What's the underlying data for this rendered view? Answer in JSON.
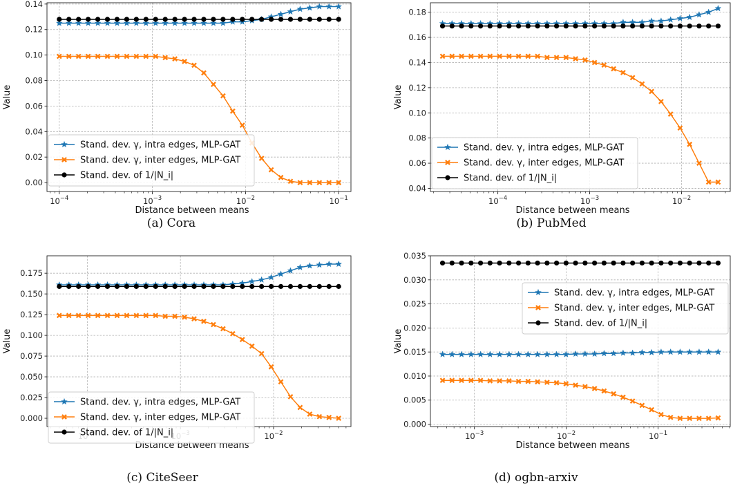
{
  "colors": {
    "intra": "#1f77b4",
    "inter": "#ff7f0e",
    "inv": "#000000"
  },
  "chart_data": [
    {
      "type": "line",
      "caption": "(a) Cora",
      "xlabel": "Distance between means",
      "ylabel": "Value",
      "xscale": "log",
      "xlim": [
        7.5e-05,
        0.000125
      ],
      "ylim": [
        -0.007,
        0.141
      ],
      "xticks": [
        {
          "v": 0.0001,
          "base": "10",
          "exp": "−4"
        },
        {
          "v": 0.001,
          "base": "10",
          "exp": "−3"
        },
        {
          "v": 0.01,
          "base": "10",
          "exp": "−2"
        },
        {
          "v": 0.1,
          "base": "10",
          "exp": "−1"
        }
      ],
      "yticks": [
        {
          "v": 0.0,
          "label": "0.00"
        },
        {
          "v": 0.02,
          "label": "0.02"
        },
        {
          "v": 0.04,
          "label": "0.04"
        },
        {
          "v": 0.06,
          "label": "0.06"
        },
        {
          "v": 0.08,
          "label": "0.08"
        },
        {
          "v": 0.1,
          "label": "0.10"
        },
        {
          "v": 0.12,
          "label": "0.12"
        },
        {
          "v": 0.14,
          "label": "0.14"
        }
      ],
      "legend": "lower-left",
      "x_range": [
        0.0001,
        0.1
      ],
      "n_points": 30,
      "grid": true,
      "series": [
        {
          "name": "Stand. dev. γ, intra edges, MLP-GAT",
          "color": "intra",
          "marker": "star",
          "values": [
            0.125,
            0.125,
            0.125,
            0.125,
            0.125,
            0.125,
            0.125,
            0.125,
            0.125,
            0.125,
            0.125,
            0.125,
            0.125,
            0.125,
            0.125,
            0.125,
            0.125,
            0.125,
            0.126,
            0.126,
            0.127,
            0.128,
            0.13,
            0.132,
            0.134,
            0.136,
            0.137,
            0.138,
            0.138,
            0.138
          ]
        },
        {
          "name": "Stand. dev. γ, inter edges, MLP-GAT",
          "color": "inter",
          "marker": "x",
          "values": [
            0.099,
            0.099,
            0.099,
            0.099,
            0.099,
            0.099,
            0.099,
            0.099,
            0.099,
            0.099,
            0.099,
            0.098,
            0.097,
            0.095,
            0.092,
            0.086,
            0.077,
            0.068,
            0.056,
            0.045,
            0.031,
            0.019,
            0.01,
            0.004,
            0.001,
            0.0,
            0.0,
            0.0,
            0.0,
            0.0
          ]
        },
        {
          "name": "Stand. dev. of 1/|N_i|",
          "color": "inv",
          "marker": "circle",
          "values": [
            0.128,
            0.128,
            0.128,
            0.128,
            0.128,
            0.128,
            0.128,
            0.128,
            0.128,
            0.128,
            0.128,
            0.128,
            0.128,
            0.128,
            0.128,
            0.128,
            0.128,
            0.128,
            0.128,
            0.128,
            0.128,
            0.128,
            0.128,
            0.128,
            0.128,
            0.128,
            0.128,
            0.128,
            0.128,
            0.128
          ]
        }
      ]
    },
    {
      "type": "line",
      "caption": "(b) PubMed",
      "xlabel": "Distance between means",
      "ylabel": "Value",
      "xscale": "log",
      "ylim": [
        0.0375,
        0.1875
      ],
      "xticks": [
        {
          "v": 0.0001,
          "base": "10",
          "exp": "−4"
        },
        {
          "v": 0.001,
          "base": "10",
          "exp": "−3"
        },
        {
          "v": 0.01,
          "base": "10",
          "exp": "−2"
        }
      ],
      "yticks": [
        {
          "v": 0.04,
          "label": "0.04"
        },
        {
          "v": 0.06,
          "label": "0.06"
        },
        {
          "v": 0.08,
          "label": "0.08"
        },
        {
          "v": 0.1,
          "label": "0.10"
        },
        {
          "v": 0.12,
          "label": "0.12"
        },
        {
          "v": 0.14,
          "label": "0.14"
        },
        {
          "v": 0.16,
          "label": "0.16"
        },
        {
          "v": 0.18,
          "label": "0.18"
        }
      ],
      "legend": "lower-left",
      "x_range": [
        2.5e-05,
        0.025
      ],
      "n_points": 30,
      "grid": true,
      "series": [
        {
          "name": "Stand. dev. γ, intra edges, MLP-GAT",
          "color": "intra",
          "marker": "star",
          "values": [
            0.171,
            0.171,
            0.171,
            0.171,
            0.171,
            0.171,
            0.171,
            0.171,
            0.171,
            0.171,
            0.171,
            0.171,
            0.171,
            0.171,
            0.171,
            0.171,
            0.171,
            0.171,
            0.171,
            0.172,
            0.172,
            0.172,
            0.173,
            0.173,
            0.174,
            0.175,
            0.176,
            0.178,
            0.18,
            0.183
          ]
        },
        {
          "name": "Stand. dev. γ, inter edges, MLP-GAT",
          "color": "inter",
          "marker": "x",
          "values": [
            0.145,
            0.145,
            0.145,
            0.145,
            0.145,
            0.145,
            0.145,
            0.145,
            0.145,
            0.145,
            0.145,
            0.144,
            0.144,
            0.144,
            0.143,
            0.142,
            0.14,
            0.138,
            0.135,
            0.132,
            0.128,
            0.123,
            0.117,
            0.109,
            0.099,
            0.088,
            0.075,
            0.06,
            0.045,
            0.045
          ]
        },
        {
          "name": "Stand. dev. of 1/|N_i|",
          "color": "inv",
          "marker": "circle",
          "values": [
            0.169,
            0.169,
            0.169,
            0.169,
            0.169,
            0.169,
            0.169,
            0.169,
            0.169,
            0.169,
            0.169,
            0.169,
            0.169,
            0.169,
            0.169,
            0.169,
            0.169,
            0.169,
            0.169,
            0.169,
            0.169,
            0.169,
            0.169,
            0.169,
            0.169,
            0.169,
            0.169,
            0.169,
            0.169,
            0.169
          ]
        }
      ]
    },
    {
      "type": "line",
      "caption": "(c) CiteSeer",
      "xlabel": "Distance between means",
      "ylabel": "Value",
      "xscale": "log",
      "ylim": [
        -0.01,
        0.196
      ],
      "xticks": [
        {
          "v": 0.0001,
          "base": "10",
          "exp": "−4"
        },
        {
          "v": 0.001,
          "base": "10",
          "exp": "−3"
        },
        {
          "v": 0.01,
          "base": "10",
          "exp": "−2"
        }
      ],
      "yticks": [
        {
          "v": 0.0,
          "label": "0.000"
        },
        {
          "v": 0.025,
          "label": "0.025"
        },
        {
          "v": 0.05,
          "label": "0.050"
        },
        {
          "v": 0.075,
          "label": "0.075"
        },
        {
          "v": 0.1,
          "label": "0.100"
        },
        {
          "v": 0.125,
          "label": "0.125"
        },
        {
          "v": 0.15,
          "label": "0.150"
        },
        {
          "v": 0.175,
          "label": "0.175"
        }
      ],
      "legend": "lower-left",
      "x_range": [
        5e-05,
        0.05
      ],
      "n_points": 30,
      "grid": true,
      "series": [
        {
          "name": "Stand. dev. γ, intra edges, MLP-GAT",
          "color": "intra",
          "marker": "star",
          "values": [
            0.161,
            0.161,
            0.161,
            0.161,
            0.161,
            0.161,
            0.161,
            0.161,
            0.161,
            0.161,
            0.161,
            0.161,
            0.161,
            0.161,
            0.161,
            0.161,
            0.161,
            0.161,
            0.162,
            0.163,
            0.165,
            0.167,
            0.17,
            0.174,
            0.178,
            0.182,
            0.184,
            0.185,
            0.186,
            0.186
          ]
        },
        {
          "name": "Stand. dev. γ, inter edges, MLP-GAT",
          "color": "inter",
          "marker": "x",
          "values": [
            0.124,
            0.124,
            0.124,
            0.124,
            0.124,
            0.124,
            0.124,
            0.124,
            0.124,
            0.124,
            0.124,
            0.123,
            0.123,
            0.122,
            0.12,
            0.117,
            0.113,
            0.108,
            0.102,
            0.095,
            0.087,
            0.078,
            0.062,
            0.044,
            0.026,
            0.013,
            0.005,
            0.002,
            0.001,
            0.0
          ]
        },
        {
          "name": "Stand. dev. of 1/|N_i|",
          "color": "inv",
          "marker": "circle",
          "values": [
            0.159,
            0.159,
            0.159,
            0.159,
            0.159,
            0.159,
            0.159,
            0.159,
            0.159,
            0.159,
            0.159,
            0.159,
            0.159,
            0.159,
            0.159,
            0.159,
            0.159,
            0.159,
            0.159,
            0.159,
            0.159,
            0.159,
            0.159,
            0.159,
            0.159,
            0.159,
            0.159,
            0.159,
            0.159,
            0.159
          ]
        }
      ]
    },
    {
      "type": "line",
      "caption": "(d) ogbn-arxiv",
      "xlabel": "Distance between means",
      "ylabel": "Value",
      "xscale": "log",
      "ylim": [
        -0.0005,
        0.035
      ],
      "xticks": [
        {
          "v": 0.001,
          "base": "10",
          "exp": "−3"
        },
        {
          "v": 0.01,
          "base": "10",
          "exp": "−2"
        },
        {
          "v": 0.1,
          "base": "10",
          "exp": "−1"
        }
      ],
      "yticks": [
        {
          "v": 0.0,
          "label": "0.000"
        },
        {
          "v": 0.005,
          "label": "0.005"
        },
        {
          "v": 0.01,
          "label": "0.010"
        },
        {
          "v": 0.015,
          "label": "0.015"
        },
        {
          "v": 0.02,
          "label": "0.020"
        },
        {
          "v": 0.025,
          "label": "0.025"
        },
        {
          "v": 0.03,
          "label": "0.030"
        },
        {
          "v": 0.035,
          "label": "0.035"
        }
      ],
      "legend": "upper-right",
      "x_range": [
        0.00045,
        0.45
      ],
      "n_points": 30,
      "grid": true,
      "series": [
        {
          "name": "Stand. dev. γ, intra edges, MLP-GAT",
          "color": "intra",
          "marker": "star",
          "values": [
            0.0145,
            0.0145,
            0.0145,
            0.0145,
            0.0145,
            0.0145,
            0.0145,
            0.0145,
            0.0145,
            0.0145,
            0.0145,
            0.0145,
            0.0145,
            0.0145,
            0.0146,
            0.0146,
            0.0146,
            0.0147,
            0.0147,
            0.0148,
            0.0148,
            0.0149,
            0.0149,
            0.015,
            0.015,
            0.015,
            0.015,
            0.015,
            0.015,
            0.015
          ]
        },
        {
          "name": "Stand. dev. γ, inter edges, MLP-GAT",
          "color": "inter",
          "marker": "x",
          "values": [
            0.0091,
            0.0091,
            0.0091,
            0.0091,
            0.0091,
            0.009,
            0.009,
            0.009,
            0.0089,
            0.0089,
            0.0088,
            0.0087,
            0.0086,
            0.0084,
            0.0081,
            0.0078,
            0.0074,
            0.0069,
            0.0063,
            0.0056,
            0.0048,
            0.0039,
            0.003,
            0.002,
            0.0014,
            0.0012,
            0.0012,
            0.0012,
            0.0012,
            0.0013
          ]
        },
        {
          "name": "Stand. dev. of 1/|N_i|",
          "color": "inv",
          "marker": "circle",
          "values": [
            0.0335,
            0.0335,
            0.0335,
            0.0335,
            0.0335,
            0.0335,
            0.0335,
            0.0335,
            0.0335,
            0.0335,
            0.0335,
            0.0335,
            0.0335,
            0.0335,
            0.0335,
            0.0335,
            0.0335,
            0.0335,
            0.0335,
            0.0335,
            0.0335,
            0.0335,
            0.0335,
            0.0335,
            0.0335,
            0.0335,
            0.0335,
            0.0335,
            0.0335,
            0.0335
          ]
        }
      ]
    }
  ]
}
